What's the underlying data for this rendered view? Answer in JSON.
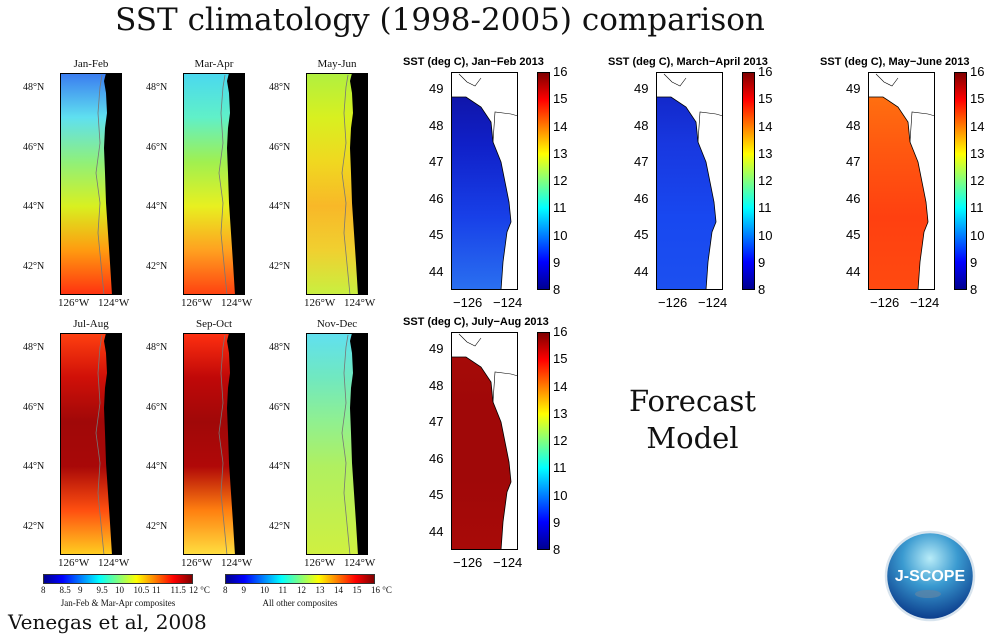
{
  "title": "SST climatology (1998-2005) comparison",
  "climatology": {
    "lat_labels": [
      "48°N",
      "46°N",
      "44°N",
      "42°N"
    ],
    "lon_labels": [
      "126°W",
      "124°W"
    ],
    "panels": [
      {
        "label": "Jan-Feb",
        "colors": [
          "#3a7bf0",
          "#5fe0f0",
          "#8ff07a",
          "#d8f020",
          "#ff9a10",
          "#ff3010"
        ]
      },
      {
        "label": "Mar-Apr",
        "colors": [
          "#4ad8f0",
          "#60f0c8",
          "#a0f050",
          "#e8f020",
          "#ffa020",
          "#ff4010"
        ]
      },
      {
        "label": "May-Jun",
        "colors": [
          "#b0f040",
          "#d8f020",
          "#f0d820",
          "#f8b828",
          "#f0d030",
          "#c8f040"
        ]
      },
      {
        "label": "Jul-Aug",
        "colors": [
          "#ff4010",
          "#d01008",
          "#a00808",
          "#a80808",
          "#ff5010",
          "#ffd020"
        ]
      },
      {
        "label": "Sep-Oct",
        "colors": [
          "#ff3010",
          "#c00808",
          "#a00808",
          "#b00808",
          "#ff8010",
          "#ffe040"
        ]
      },
      {
        "label": "Nov-Dec",
        "colors": [
          "#60e0f0",
          "#70e8c0",
          "#90f090",
          "#b0f060",
          "#c0f050",
          "#d0f040"
        ]
      }
    ],
    "colorbars": [
      {
        "ticks": [
          "8",
          "8.5",
          "9",
          "9.5",
          "10",
          "10.5",
          "11",
          "11.5",
          "12 °C"
        ],
        "caption": "Jan-Feb & Mar-Apr composites"
      },
      {
        "ticks": [
          "8",
          "9",
          "10",
          "11",
          "12",
          "13",
          "14",
          "15",
          "16 °C"
        ],
        "caption": "All other composites"
      }
    ],
    "land_color": "#000000"
  },
  "model": {
    "lat_labels": [
      "49",
      "48",
      "47",
      "46",
      "45",
      "44"
    ],
    "lon_labels": [
      "−126",
      "−124"
    ],
    "colorbar_ticks": [
      "16",
      "15",
      "14",
      "13",
      "12",
      "11",
      "10",
      "9",
      "8"
    ],
    "panels": [
      {
        "title": "SST (deg C), Jan−Feb 2013",
        "colors": [
          "#10109a",
          "#1020c8",
          "#1840e8",
          "#2a70f0"
        ]
      },
      {
        "title": "SST (deg C), March−April 2013",
        "colors": [
          "#1020c0",
          "#1838e0",
          "#1848f0",
          "#1c50f0"
        ]
      },
      {
        "title": "SST (deg C), May−June 2013",
        "colors": [
          "#ff7a10",
          "#ff5a10",
          "#ff4010",
          "#ff4a10"
        ]
      },
      {
        "title": "SST (deg C), July−Aug 2013",
        "colors": [
          "#a80c08",
          "#a00808",
          "#a00808",
          "#a80a08"
        ]
      }
    ]
  },
  "forecast_label": [
    "Forecast",
    "Model"
  ],
  "credit": "Venegas et al, 2008",
  "logo": {
    "text": "J-SCOPE"
  }
}
